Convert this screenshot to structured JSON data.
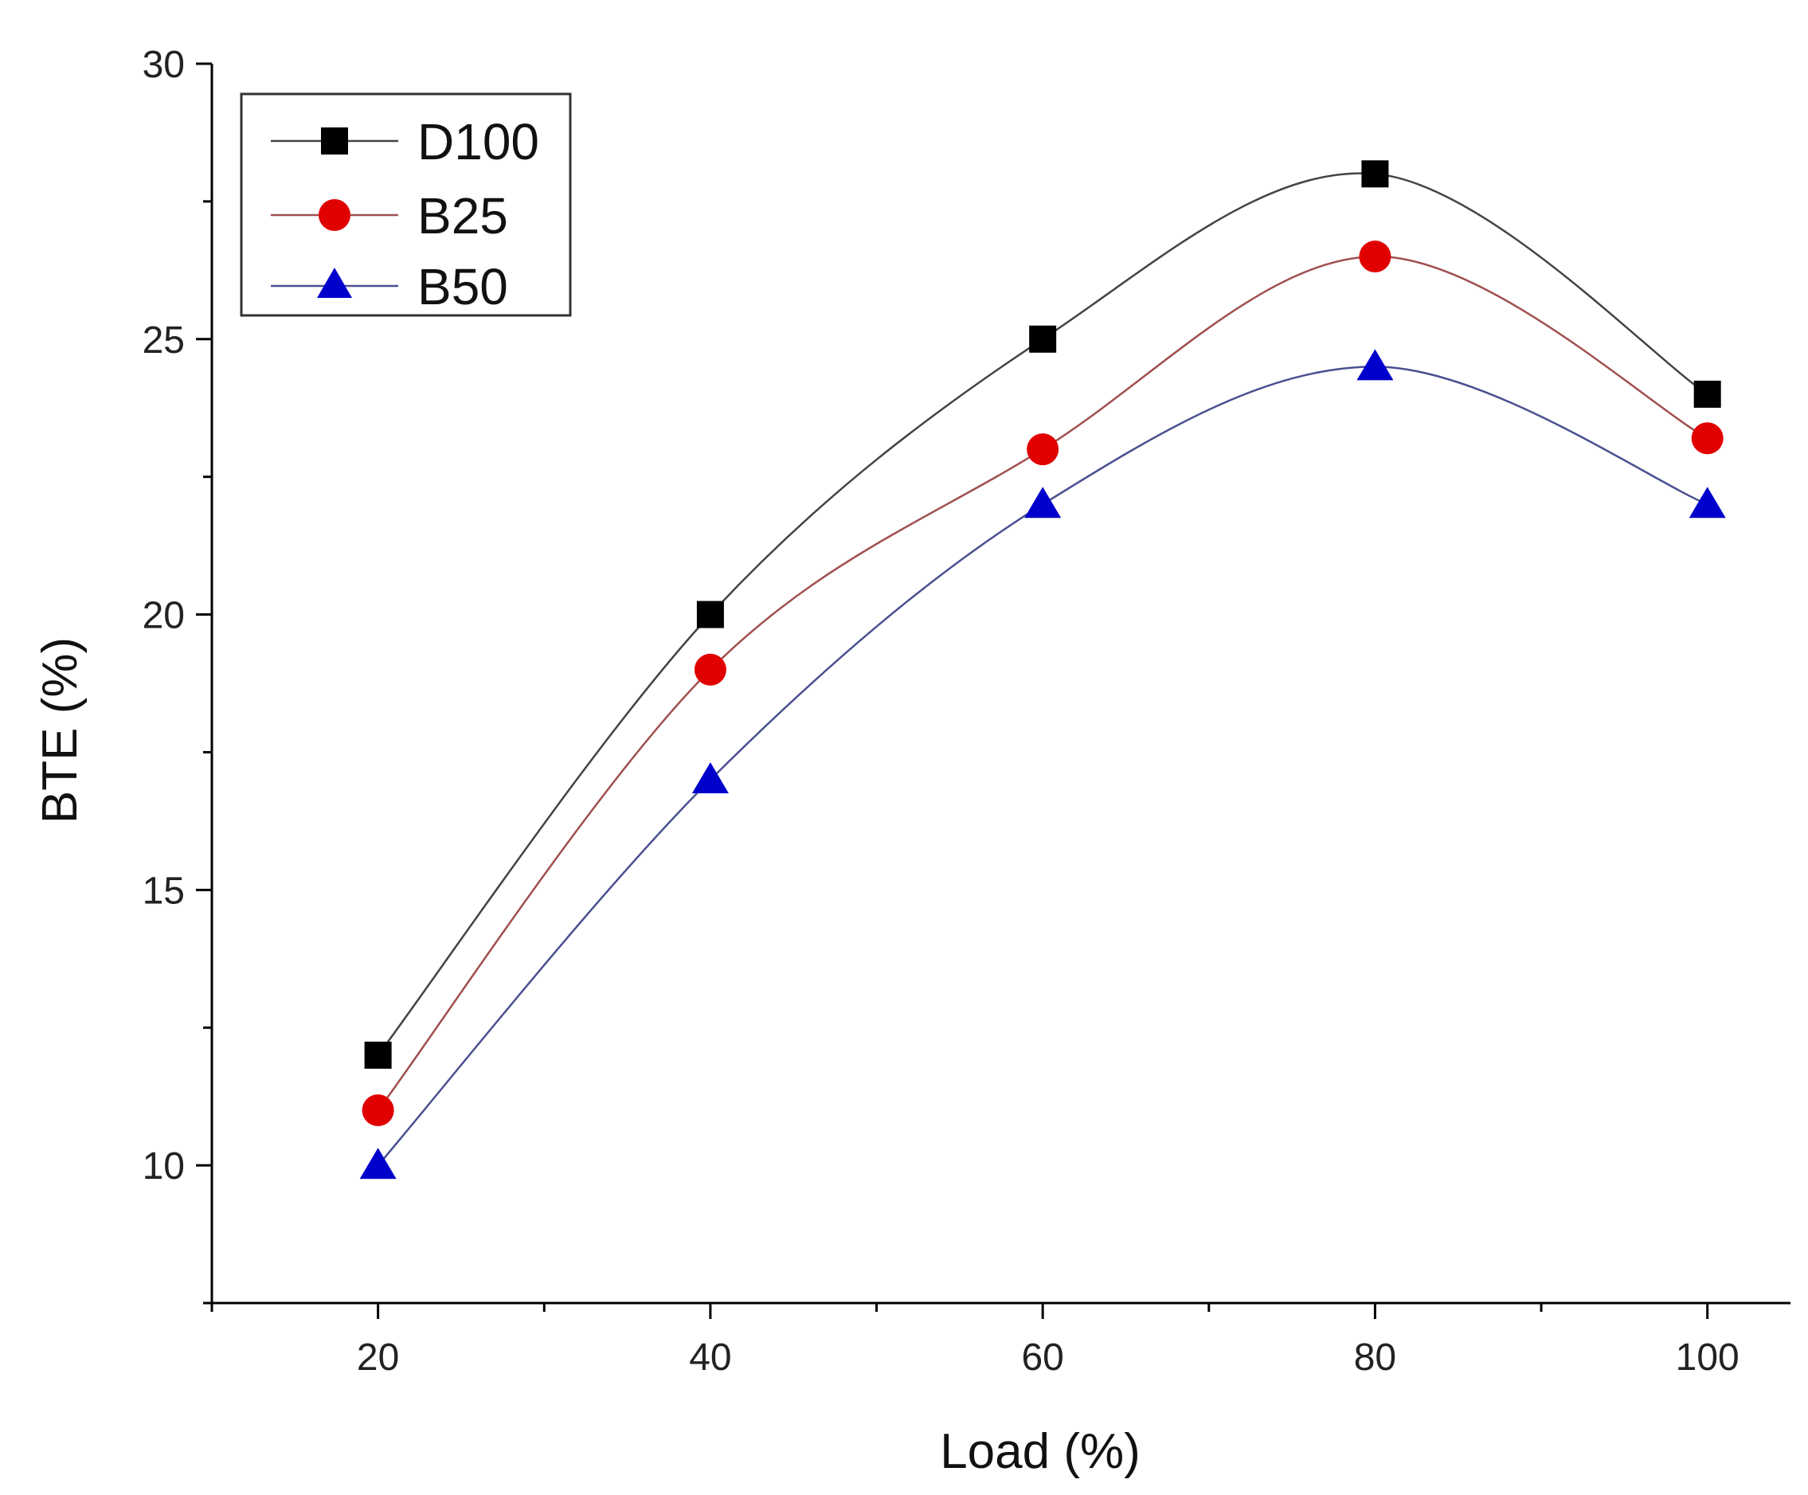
{
  "chart_data": {
    "type": "line",
    "title": "",
    "xlabel": "Load (%)",
    "ylabel": "BTE (%)",
    "x": [
      20,
      40,
      60,
      80,
      100
    ],
    "xlim": [
      10,
      105
    ],
    "ylim": [
      7.5,
      30
    ],
    "xticks": [
      20,
      40,
      60,
      80,
      100
    ],
    "xtick_labels": [
      "20",
      "40",
      "60",
      "80",
      "100"
    ],
    "xminor_ticks": [
      10,
      30,
      50,
      70,
      90
    ],
    "yticks": [
      10,
      15,
      20,
      25,
      30
    ],
    "ytick_labels": [
      "10",
      "15",
      "20",
      "25",
      "30"
    ],
    "yminor_ticks": [
      12.5,
      17.5,
      22.5,
      27.5
    ],
    "grid": false,
    "legend_position": "top-left",
    "series": [
      {
        "name": "D100",
        "marker": "square",
        "color": "#000000",
        "line_color": "#444444",
        "values": [
          12,
          20,
          25,
          28,
          24
        ]
      },
      {
        "name": "B25",
        "marker": "circle",
        "color": "#e00000",
        "line_color": "#a05050",
        "values": [
          11,
          19,
          23,
          26.5,
          23.2
        ]
      },
      {
        "name": "B50",
        "marker": "triangle",
        "color": "#0000cc",
        "line_color": "#4a5090",
        "values": [
          10,
          17,
          22,
          24.5,
          22
        ]
      }
    ]
  }
}
